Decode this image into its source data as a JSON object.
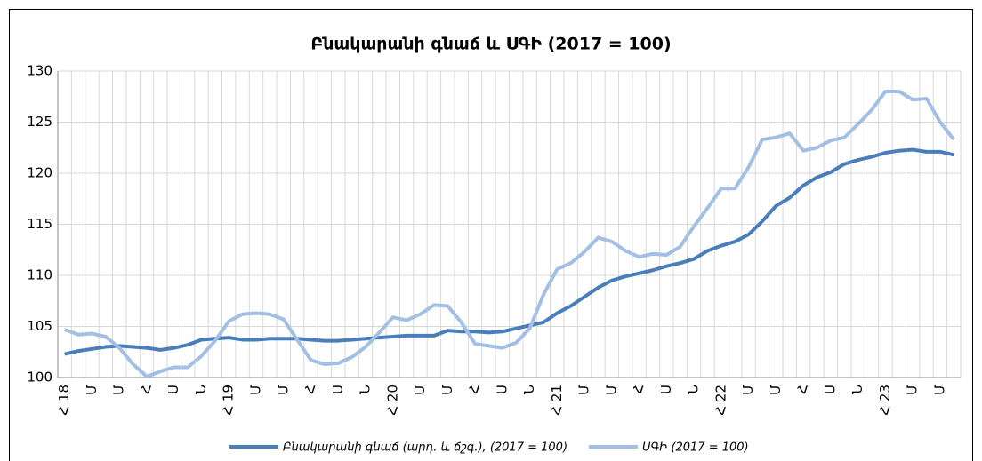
{
  "chart_data": {
    "type": "line",
    "title": "Բնակարանի գնաճ և ՍԳԻ (2017 = 100)",
    "categories": [
      "Հ 18",
      null,
      "Մ",
      null,
      "Մ",
      null,
      "Հ",
      null,
      "Ս",
      null,
      "Ն",
      null,
      "Հ 19",
      null,
      "Մ",
      null,
      "Մ",
      null,
      "Հ",
      null,
      "Ս",
      null,
      "Ն",
      null,
      "Հ 20",
      null,
      "Մ",
      null,
      "Մ",
      null,
      "Հ",
      null,
      "Ս",
      null,
      "Ն",
      null,
      "Հ 21",
      null,
      "Մ",
      null,
      "Մ",
      null,
      "Հ",
      null,
      "Ս",
      null,
      "Ն",
      null,
      "Հ 22",
      null,
      "Մ",
      null,
      "Մ",
      null,
      "Հ",
      null,
      "Ս",
      null,
      "Ն",
      null,
      "Հ 23",
      null,
      "Մ",
      null,
      "Մ",
      null
    ],
    "series": [
      {
        "name": "Բնակարանի գնաճ (արդ. և ճշգ.), (2017 = 100)",
        "color": "#4a7ebb",
        "values": [
          102.3,
          102.6,
          102.8,
          103.0,
          103.1,
          103.0,
          102.9,
          102.7,
          102.9,
          103.2,
          103.7,
          103.8,
          103.9,
          103.7,
          103.7,
          103.8,
          103.8,
          103.8,
          103.7,
          103.6,
          103.6,
          103.7,
          103.8,
          103.9,
          104.0,
          104.1,
          104.1,
          104.1,
          104.6,
          104.5,
          104.5,
          104.4,
          104.5,
          104.8,
          105.1,
          105.4,
          106.3,
          107.0,
          107.9,
          108.8,
          109.5,
          109.9,
          110.2,
          110.5,
          110.9,
          111.2,
          111.6,
          112.4,
          112.9,
          113.3,
          114.0,
          115.3,
          116.8,
          117.6,
          118.8,
          119.6,
          120.1,
          120.9,
          121.3,
          121.6,
          122.0,
          122.2,
          122.3,
          122.1,
          122.1,
          121.8
        ]
      },
      {
        "name": "ՍԳԻ (2017 = 100)",
        "color": "#a3bfe3",
        "values": [
          104.7,
          104.2,
          104.3,
          104.0,
          102.9,
          101.3,
          100.1,
          100.6,
          101.0,
          101.0,
          102.1,
          103.6,
          105.5,
          106.2,
          106.3,
          106.2,
          105.7,
          103.7,
          101.7,
          101.3,
          101.4,
          102.0,
          103.0,
          104.4,
          105.9,
          105.6,
          106.2,
          107.1,
          107.0,
          105.4,
          103.3,
          103.1,
          102.9,
          103.4,
          104.8,
          108.1,
          110.6,
          111.2,
          112.3,
          113.7,
          113.3,
          112.4,
          111.8,
          112.1,
          112.0,
          112.8,
          114.8,
          116.6,
          118.5,
          118.5,
          120.6,
          123.3,
          123.5,
          123.9,
          122.2,
          122.5,
          123.2,
          123.5,
          124.8,
          126.2,
          128.0,
          128.0,
          127.2,
          127.3,
          125.0,
          123.3
        ]
      }
    ],
    "ylim": [
      100,
      130
    ],
    "yticks": [
      100,
      105,
      110,
      115,
      120,
      125,
      130
    ],
    "grid": true
  }
}
